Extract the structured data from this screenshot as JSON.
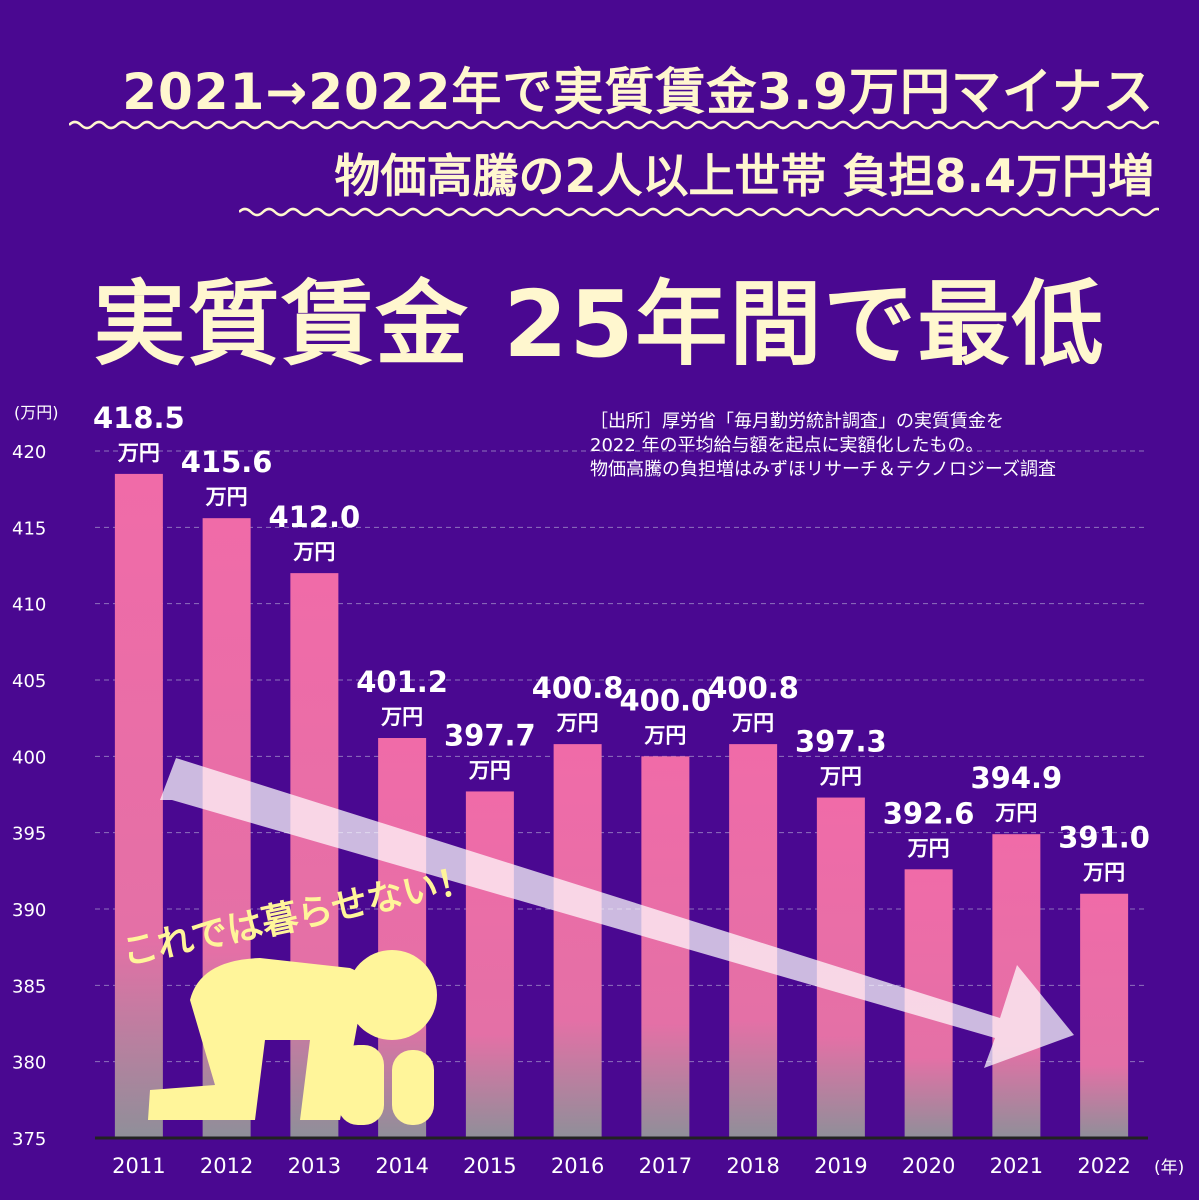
{
  "headline1": "2021→2022年で実質賃金3.9万円マイナス",
  "headline2": "物価高騰の2人以上世帯 負担8.4万円増",
  "main_title": "実質賃金 25年間で最低",
  "source_note": {
    "line1": "［出所］厚労省「毎月勤労統計調査」の実質賃金を",
    "line2": "2022 年の平均給与額を起点に実額化したもの。",
    "line3": "物価高騰の負担増はみずほリサーチ＆テクノロジーズ調査"
  },
  "callout": "これでは暮らせない！",
  "colors": {
    "background": "#4a0891",
    "bar_top": "#f06ba8",
    "bar_bottom": "#8f8f99",
    "text_cream": "#fff7cf",
    "arrow": "#ffffff",
    "figure": "#fff59a"
  },
  "chart_data": {
    "type": "bar",
    "ylabel": "(万円)",
    "xlabel": "(年)",
    "value_unit": "万円",
    "ylim": [
      375,
      420
    ],
    "yticks": [
      420,
      415,
      410,
      405,
      400,
      395,
      390,
      385,
      380,
      375
    ],
    "grid": true,
    "categories": [
      "2011",
      "2012",
      "2013",
      "2014",
      "2015",
      "2016",
      "2017",
      "2018",
      "2019",
      "2020",
      "2021",
      "2022"
    ],
    "values": [
      418.5,
      415.6,
      412.0,
      401.2,
      397.7,
      400.8,
      400.0,
      400.8,
      397.3,
      392.6,
      394.9,
      391.0
    ],
    "value_labels": [
      "418.5",
      "415.6",
      "412.0",
      "401.2",
      "397.7",
      "400.8",
      "400.0",
      "400.8",
      "397.3",
      "392.6",
      "394.9",
      "391.0"
    ]
  }
}
